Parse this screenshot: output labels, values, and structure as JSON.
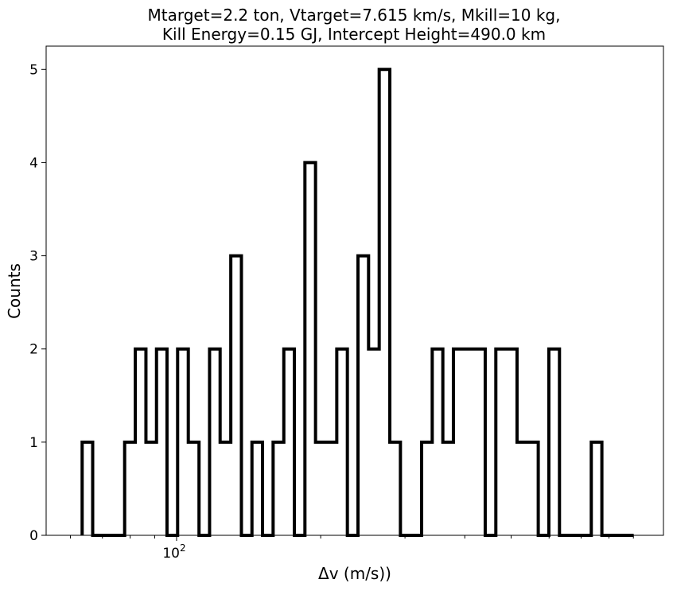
{
  "chart_data": {
    "type": "step-histogram",
    "title_line1": "Mtarget=2.2 ton, Vtarget=7.615 km/s, Mkill=10 kg,",
    "title_line2": "Kill Energy=0.15 GJ, Intercept Height=490.0 km",
    "xlabel": "Δv (m/s))",
    "ylabel": "Counts",
    "xscale": "log",
    "xlim": [
      53.4,
      1040
    ],
    "ylim": [
      0,
      5.25
    ],
    "yticks": [
      0,
      1,
      2,
      3,
      4,
      5
    ],
    "xticks_major": [
      {
        "value": 100,
        "label": "10",
        "sup": "2"
      }
    ],
    "xticks_minor": [
      60,
      70,
      80,
      90,
      200,
      300,
      400,
      500,
      600,
      700,
      800,
      900
    ],
    "grid": false,
    "line_color": "#000000",
    "bin_edges": [
      63.5,
      66.8,
      70.3,
      74.0,
      77.9,
      82.0,
      86.3,
      90.8,
      95.5,
      100.5,
      105.8,
      111.4,
      117.2,
      123.3,
      129.8,
      136.6,
      143.7,
      151.2,
      159.1,
      167.5,
      176.2,
      185.4,
      195.1,
      205.4,
      216.1,
      227.4,
      239.3,
      251.8,
      265.0,
      278.9,
      293.5,
      308.8,
      325.0,
      342.0,
      359.9,
      378.7,
      398.5,
      419.4,
      441.3,
      464.4,
      488.7,
      514.3,
      541.2,
      569.5,
      599.3,
      630.7,
      663.7,
      698.4,
      735.0,
      773.4,
      813.9,
      856.5,
      901.3
    ],
    "counts": [
      1,
      0,
      0,
      0,
      1,
      2,
      1,
      2,
      0,
      2,
      1,
      0,
      2,
      1,
      3,
      0,
      1,
      0,
      1,
      2,
      0,
      4,
      1,
      1,
      2,
      0,
      3,
      2,
      5,
      1,
      0,
      0,
      1,
      2,
      1,
      2,
      2,
      2,
      0,
      2,
      2,
      1,
      1,
      0,
      2,
      0,
      0,
      0,
      1,
      0,
      0,
      0
    ]
  }
}
